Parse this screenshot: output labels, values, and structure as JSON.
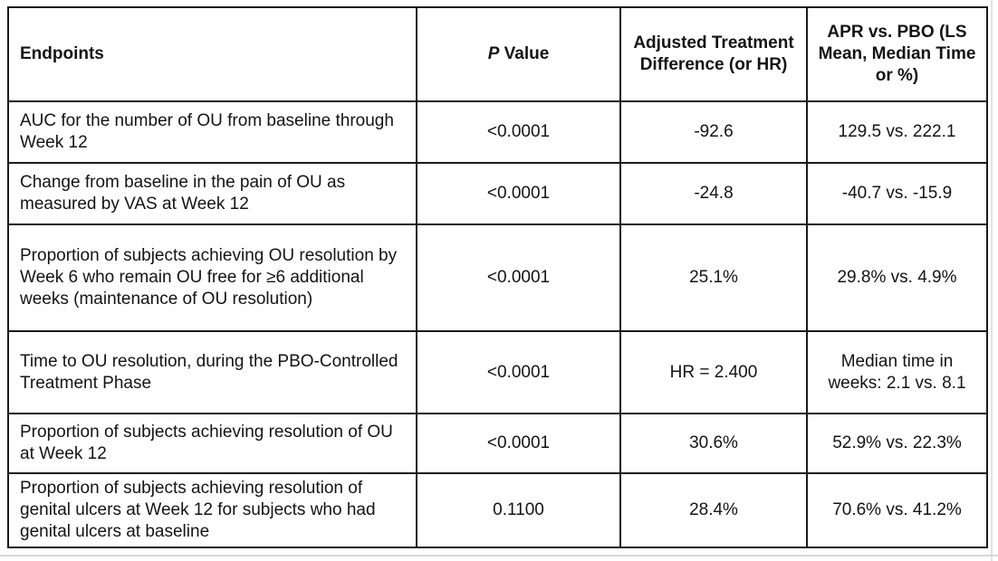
{
  "headers": {
    "endpoints": "Endpoints",
    "p_value_italic": "P",
    "p_value_rest": " Value",
    "adjusted": "Adjusted Treatment Difference (or HR)",
    "apr_vs_pbo": "APR vs. PBO (LS Mean, Median Time or %)"
  },
  "rows": [
    {
      "endpoint": "AUC for the number of OU from baseline through Week 12",
      "p_value": "<0.0001",
      "difference": "-92.6",
      "comparison": "129.5 vs. 222.1"
    },
    {
      "endpoint": "Change from baseline in the pain of OU as measured by VAS at Week 12",
      "p_value": "<0.0001",
      "difference": "-24.8",
      "comparison": "-40.7 vs. -15.9"
    },
    {
      "endpoint": "Proportion of subjects achieving OU resolution by Week 6 who remain OU free for ≥6 additional weeks (maintenance of OU resolution)",
      "p_value": "<0.0001",
      "difference": "25.1%",
      "comparison": "29.8% vs. 4.9%"
    },
    {
      "endpoint": "Time to OU resolution, during the PBO-Controlled Treatment Phase",
      "p_value": "<0.0001",
      "difference": "HR = 2.400",
      "comparison": "Median time in weeks: 2.1 vs. 8.1"
    },
    {
      "endpoint": "Proportion of subjects achieving resolution of OU at Week 12",
      "p_value": "<0.0001",
      "difference": "30.6%",
      "comparison": "52.9% vs. 22.3%"
    },
    {
      "endpoint": "Proportion of subjects achieving resolution of genital ulcers at Week 12 for subjects who had genital ulcers at baseline",
      "p_value": "0.1100",
      "difference": "28.4%",
      "comparison": "70.6% vs. 41.2%"
    }
  ]
}
